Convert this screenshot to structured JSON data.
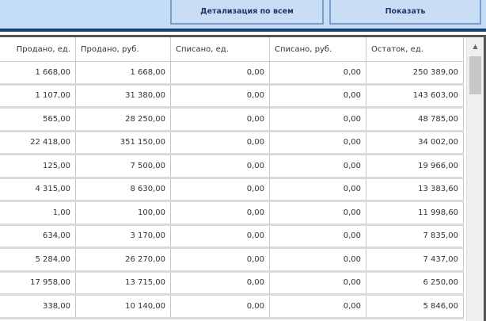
{
  "toolbar": {
    "detail_label": "Детализация по всем",
    "show_label": "Показать"
  },
  "table": {
    "headers": [
      "Продано, ед.",
      "Продано, руб.",
      "Списано, ед.",
      "Списано, руб.",
      "Остаток, ед."
    ],
    "rows": [
      [
        "1 668,00",
        "1 668,00",
        "0,00",
        "0,00",
        "250 389,00"
      ],
      [
        "1 107,00",
        "31 380,00",
        "0,00",
        "0,00",
        "143 603,00"
      ],
      [
        "565,00",
        "28 250,00",
        "0,00",
        "0,00",
        "48 785,00"
      ],
      [
        "22 418,00",
        "351 150,00",
        "0,00",
        "0,00",
        "34 002,00"
      ],
      [
        "125,00",
        "7 500,00",
        "0,00",
        "0,00",
        "19 966,00"
      ],
      [
        "4 315,00",
        "8 630,00",
        "0,00",
        "0,00",
        "13 383,60"
      ],
      [
        "1,00",
        "100,00",
        "0,00",
        "0,00",
        "11 998,60"
      ],
      [
        "634,00",
        "3 170,00",
        "0,00",
        "0,00",
        "7 835,00"
      ],
      [
        "5 284,00",
        "26 270,00",
        "0,00",
        "0,00",
        "7 437,00"
      ],
      [
        "17 958,00",
        "13 715,00",
        "0,00",
        "0,00",
        "6 250,00"
      ],
      [
        "338,00",
        "10 140,00",
        "0,00",
        "0,00",
        "5 846,00"
      ]
    ]
  },
  "scrollbar": {
    "up_icon": "▲"
  }
}
